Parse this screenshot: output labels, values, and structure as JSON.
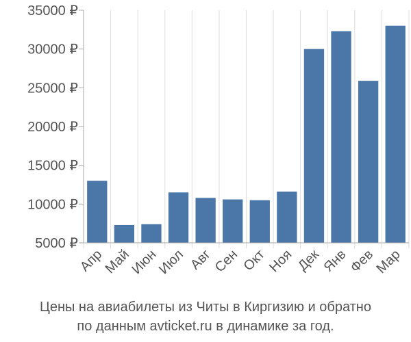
{
  "chart_data": {
    "type": "bar",
    "categories": [
      "Апр",
      "Май",
      "Июн",
      "Июл",
      "Авг",
      "Сен",
      "Окт",
      "Ноя",
      "Дек",
      "Янв",
      "Фев",
      "Мар"
    ],
    "values": [
      13000,
      7300,
      7400,
      11500,
      10800,
      10600,
      10500,
      11600,
      30000,
      32300,
      25900,
      33000
    ],
    "y_ticks": [
      "5000 ₽",
      "10000 ₽",
      "15000 ₽",
      "20000 ₽",
      "25000 ₽",
      "30000 ₽",
      "35000 ₽"
    ],
    "ylim": [
      5000,
      35000
    ],
    "grid": "vertical",
    "bar_color": "#4a76a8",
    "caption_line1": "Цены на авиабилеты из Читы в Киргизию и обратно",
    "caption_line2": "по данным avticket.ru в динамике за год."
  }
}
